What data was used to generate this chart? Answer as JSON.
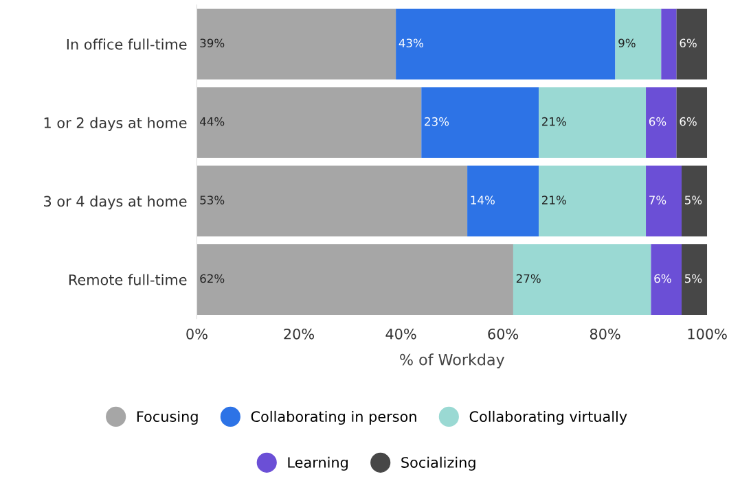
{
  "chart_data": {
    "type": "bar",
    "orientation": "horizontal",
    "stacked": true,
    "xlabel": "% of Workday",
    "categories": [
      "In office full-time",
      "1 or 2 days at home",
      "3 or 4 days at home",
      "Remote full-time"
    ],
    "xlim": [
      0,
      100
    ],
    "xticks": [
      {
        "value": 0,
        "label": "0%"
      },
      {
        "value": 20,
        "label": "20%"
      },
      {
        "value": 40,
        "label": "40%"
      },
      {
        "value": 60,
        "label": "60%"
      },
      {
        "value": 80,
        "label": "80%"
      },
      {
        "value": 100,
        "label": "100%"
      }
    ],
    "series": [
      {
        "name": "Focusing",
        "color": "#a6a6a6",
        "values": [
          39,
          44,
          53,
          62
        ],
        "value_labels": [
          "39%",
          "44%",
          "53%",
          "62%"
        ]
      },
      {
        "name": "Collaborating in person",
        "color": "#2d73e6",
        "values": [
          43,
          23,
          14,
          0
        ],
        "value_labels": [
          "43%",
          "23%",
          "14%",
          null
        ]
      },
      {
        "name": "Collaborating virtually",
        "color": "#9ad9d3",
        "values": [
          9,
          21,
          21,
          27
        ],
        "value_labels": [
          "9%",
          "21%",
          "21%",
          "27%"
        ]
      },
      {
        "name": "Learning",
        "color": "#6b4fd6",
        "values": [
          3,
          6,
          7,
          6
        ],
        "value_labels": [
          null,
          "6%",
          "7%",
          "6%"
        ]
      },
      {
        "name": "Socializing",
        "color": "#474747",
        "values": [
          6,
          6,
          5,
          5
        ],
        "value_labels": [
          "6%",
          "6%",
          "5%",
          "5%"
        ]
      }
    ],
    "grid": false,
    "legend": "bottom"
  }
}
